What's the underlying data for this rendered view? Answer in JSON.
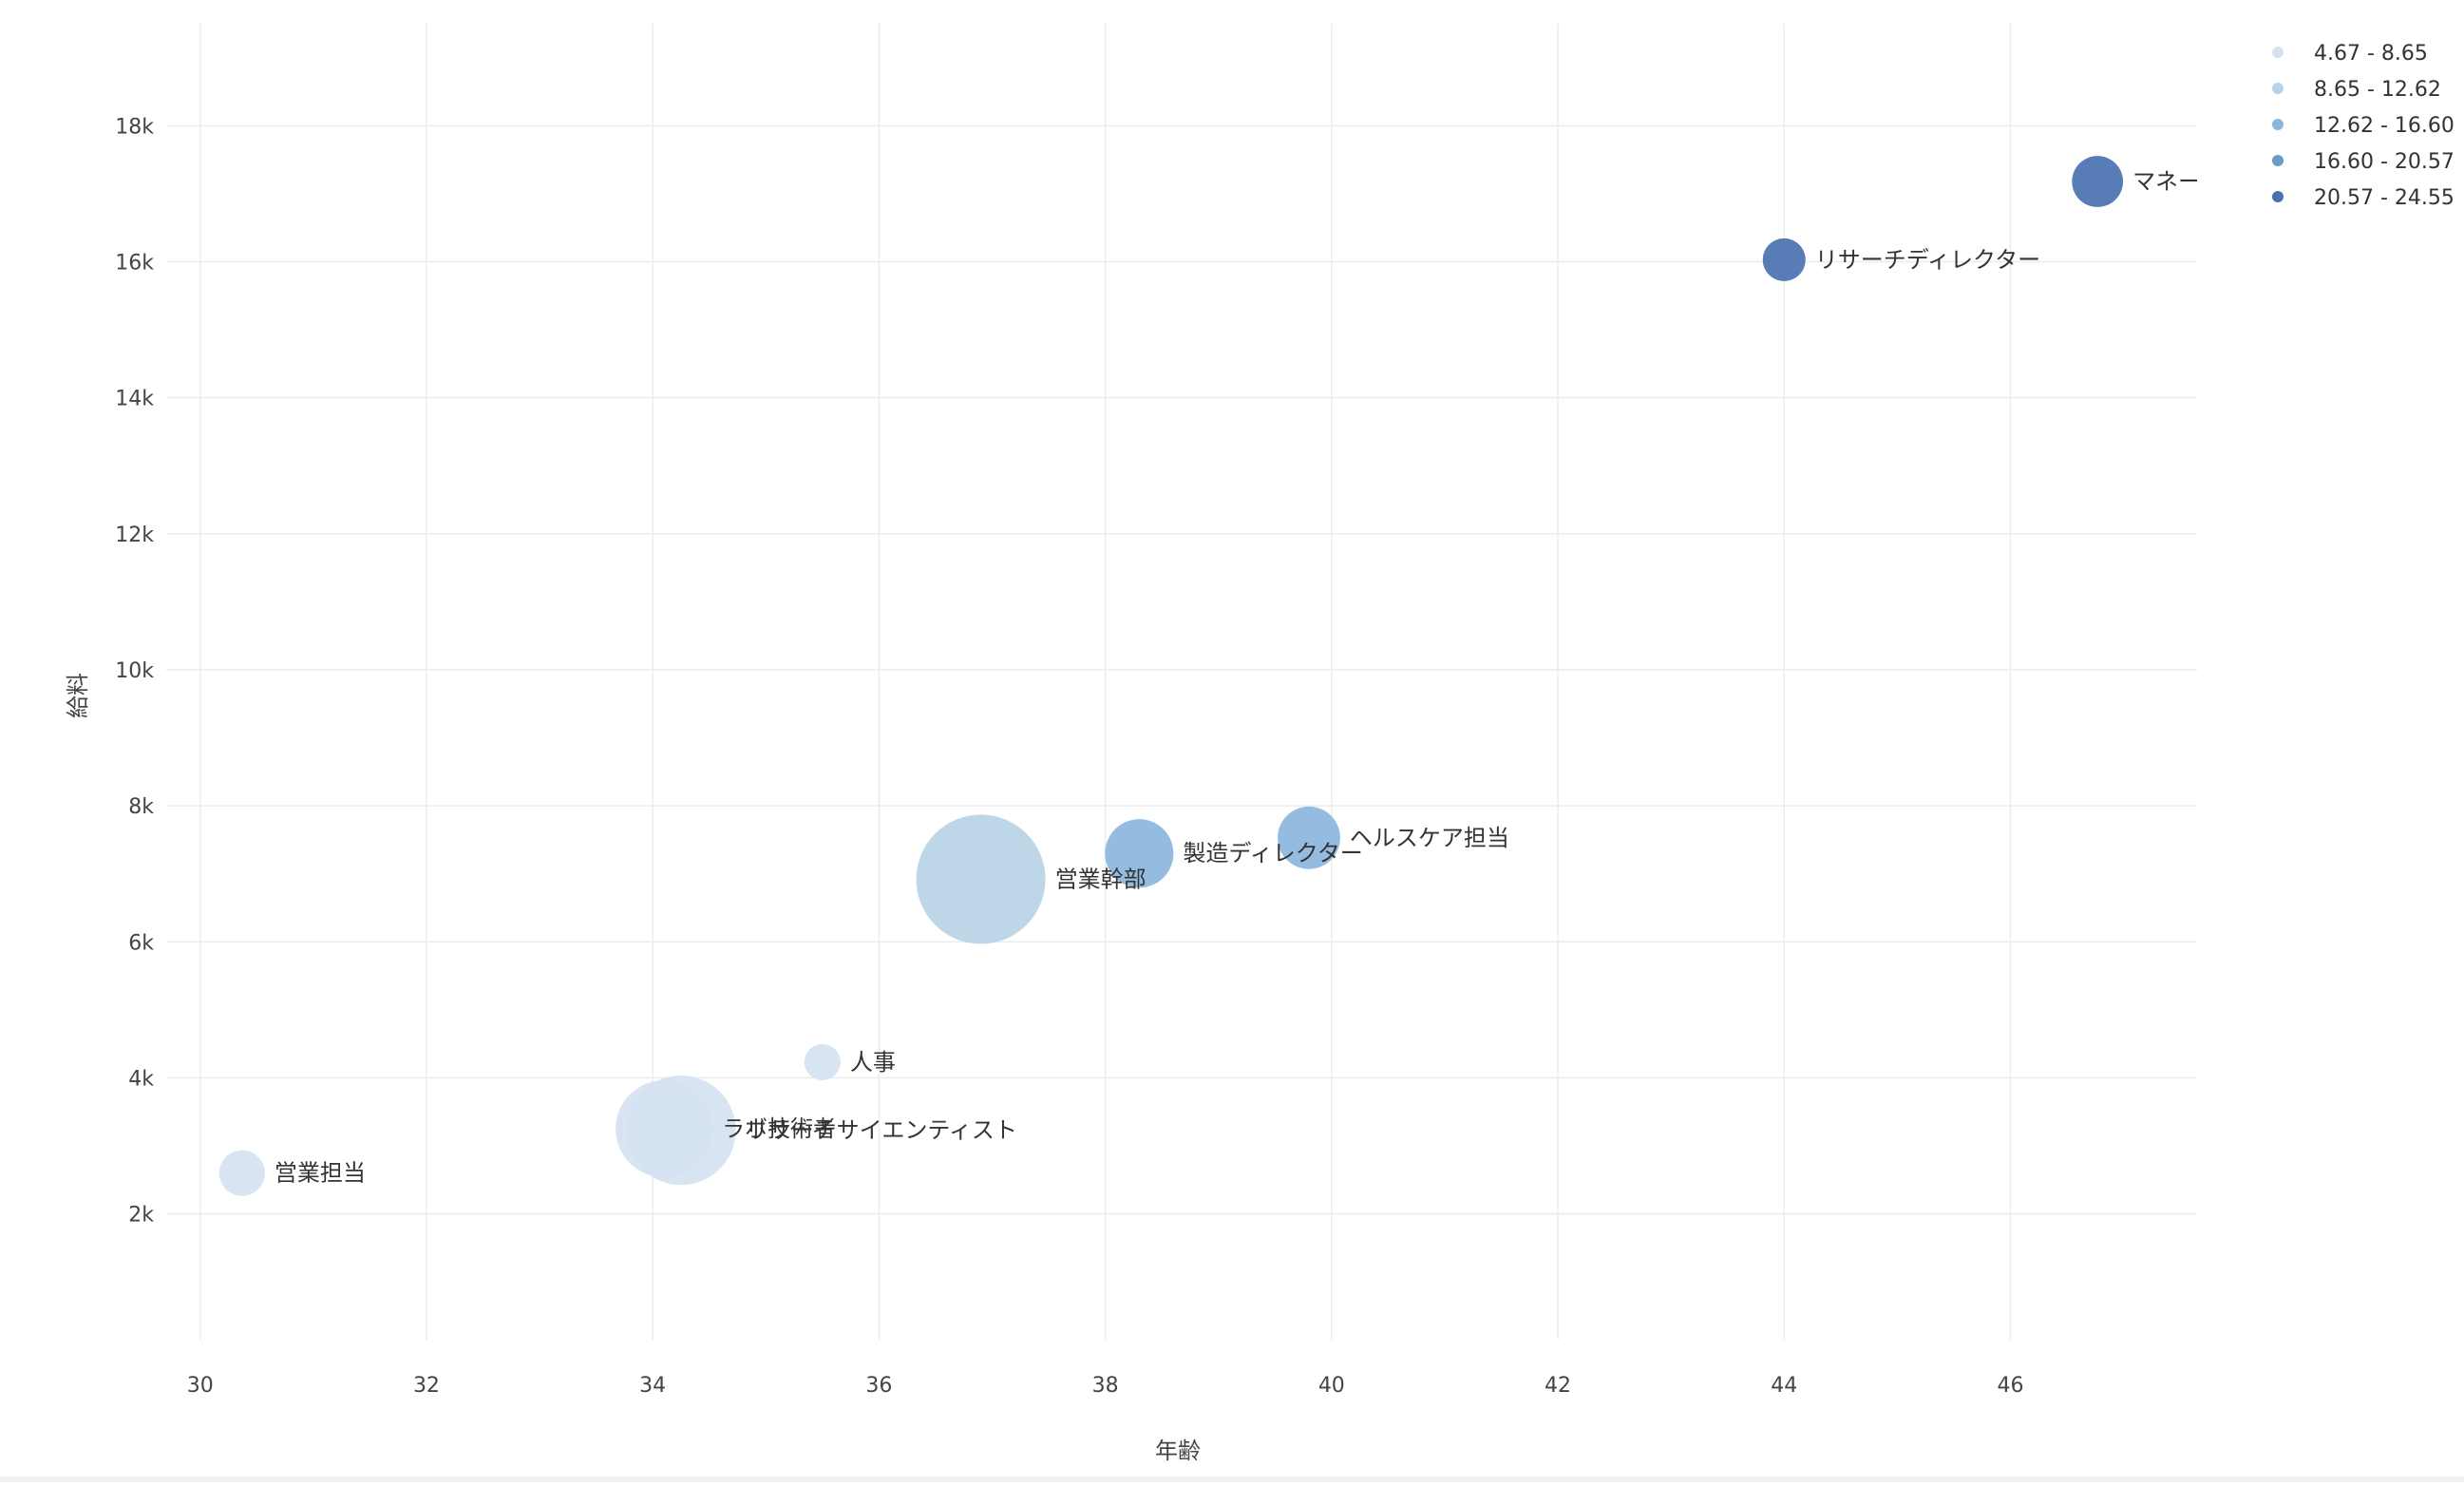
{
  "chart_data": {
    "type": "scatter",
    "title": "",
    "xlabel": "年齢",
    "ylabel": "給料",
    "xlim": [
      29.7,
      47.65
    ],
    "ylim": [
      150,
      19500
    ],
    "x_ticks": [
      30,
      32,
      34,
      36,
      38,
      40,
      42,
      44,
      46
    ],
    "x_tick_labels": [
      "30",
      "32",
      "34",
      "36",
      "38",
      "40",
      "42",
      "44",
      "46"
    ],
    "y_ticks": [
      2000,
      4000,
      6000,
      8000,
      10000,
      12000,
      14000,
      16000,
      18000
    ],
    "y_tick_labels": [
      "2k",
      "4k",
      "6k",
      "8k",
      "10k",
      "12k",
      "14k",
      "16k",
      "18k"
    ],
    "grid": true,
    "legend_position": "top-right",
    "legend": [
      {
        "label": "4.67 - 8.65",
        "color": "#d5e2f1"
      },
      {
        "label": "8.65 - 12.62",
        "color": "#b7d2e6"
      },
      {
        "label": "12.62 - 16.60",
        "color": "#8ab6dd"
      },
      {
        "label": "16.60 - 20.57",
        "color": "#6b9bc9"
      },
      {
        "label": "20.57 - 24.55",
        "color": "#4a72b0"
      }
    ],
    "points": [
      {
        "label": "営業担当",
        "x": 30.37,
        "y": 2600,
        "size": 8,
        "color": "#d5e2f1"
      },
      {
        "label": "ラボ技術者",
        "x": 34.1,
        "y": 3250,
        "size": 36,
        "color": "#d5e2f1"
      },
      {
        "label": "リサーチサイエンティスト",
        "x": 34.25,
        "y": 3230,
        "size": 46,
        "color": "#d5e2f1"
      },
      {
        "label": "人事",
        "x": 35.5,
        "y": 4230,
        "size": 5,
        "color": "#d5e2f1"
      },
      {
        "label": "営業幹部",
        "x": 36.9,
        "y": 6920,
        "size": 64,
        "color": "#b7d2e6"
      },
      {
        "label": "製造ディレクター",
        "x": 38.3,
        "y": 7300,
        "size": 18,
        "color": "#8ab6dd"
      },
      {
        "label": "ヘルスケア担当",
        "x": 39.8,
        "y": 7530,
        "size": 15,
        "color": "#8ab6dd"
      },
      {
        "label": "リサーチディレクター",
        "x": 44.0,
        "y": 16030,
        "size": 7,
        "color": "#4a72b0"
      },
      {
        "label": "マネージャー",
        "x": 46.77,
        "y": 17180,
        "size": 10,
        "color": "#4a72b0"
      }
    ]
  }
}
